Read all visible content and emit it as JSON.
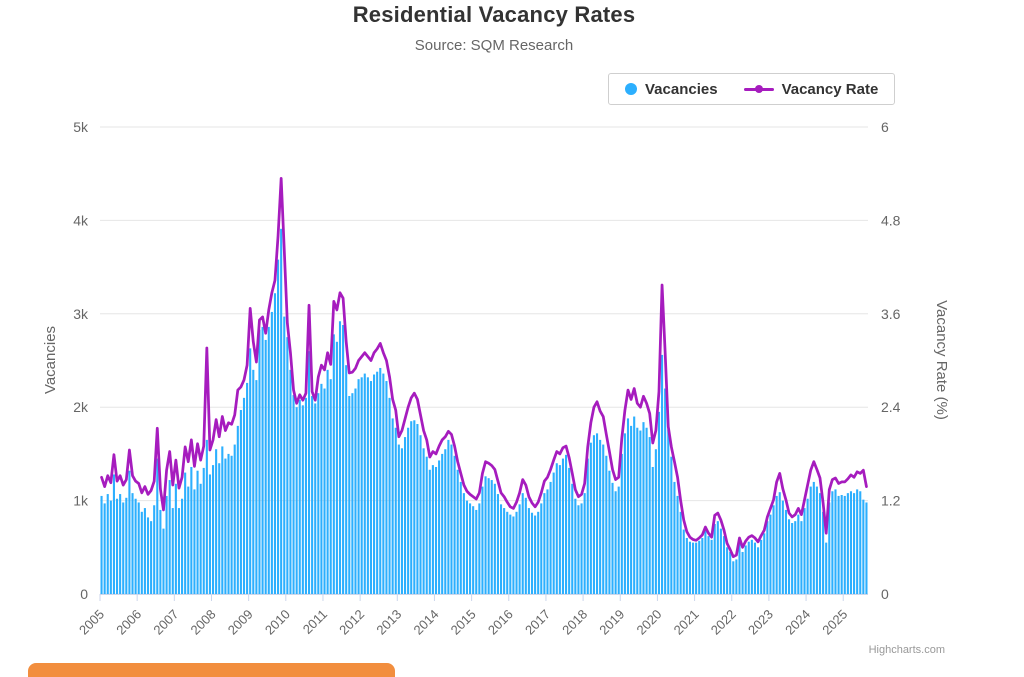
{
  "header": {
    "title": "Residential Vacancy Rates",
    "subtitle": "Source: SQM Research"
  },
  "legend": {
    "items": [
      {
        "label": "Vacancies",
        "marker": "circle-icon",
        "color": "#2CAFFE"
      },
      {
        "label": "Vacancy Rate",
        "marker": "line-dot-icon",
        "color": "#A61CBE"
      }
    ]
  },
  "credit": "Highcharts.com",
  "colors": {
    "bar_series": "#2CAFFE",
    "line_series": "#A61CBE",
    "grid": "#E6E6E6",
    "axis_line": "#CCD6EB",
    "title_text": "#333333",
    "muted_text": "#666666",
    "credit_text": "#999999",
    "orange_accent": "#F28E3E"
  },
  "chart_data": {
    "type": "combo-column-line-dual-axis",
    "interval": "monthly",
    "x_start": "2005-01",
    "x_end": "2025-08",
    "x_tick_labels": [
      "2005",
      "2006",
      "2007",
      "2008",
      "2009",
      "2010",
      "2011",
      "2012",
      "2013",
      "2014",
      "2015",
      "2016",
      "2017",
      "2018",
      "2019",
      "2020",
      "2021",
      "2022",
      "2023",
      "2024",
      "2025"
    ],
    "y_left": {
      "title": "Vacancies",
      "min": 0,
      "max": 5000,
      "ticks": [
        "0",
        "1k",
        "2k",
        "3k",
        "4k",
        "5k"
      ]
    },
    "y_right": {
      "title": "Vacancy Rate (%)",
      "min": 0,
      "max": 6,
      "ticks": [
        "0",
        "1.2",
        "2.4",
        "3.6",
        "4.8",
        "6"
      ]
    },
    "grid": true,
    "legend_position": "top-right",
    "series": [
      {
        "name": "Vacancies",
        "type": "column",
        "axis": "left",
        "unit": "dwellings",
        "values": [
          1050,
          970,
          1070,
          1000,
          1280,
          1020,
          1070,
          980,
          1030,
          1320,
          1080,
          1020,
          980,
          880,
          920,
          820,
          780,
          950,
          1450,
          900,
          700,
          1050,
          1220,
          920,
          1180,
          920,
          1020,
          1300,
          1150,
          1360,
          1120,
          1320,
          1180,
          1350,
          1650,
          1280,
          1380,
          1550,
          1400,
          1580,
          1450,
          1500,
          1480,
          1600,
          1800,
          1970,
          2100,
          2260,
          2630,
          2400,
          2290,
          2830,
          2860,
          2720,
          2860,
          3020,
          3220,
          3580,
          3910,
          2970,
          2750,
          2400,
          2130,
          2000,
          2080,
          2020,
          2100,
          2600,
          2120,
          2040,
          2150,
          2250,
          2200,
          2400,
          2300,
          2780,
          2700,
          2920,
          2880,
          2450,
          2120,
          2150,
          2200,
          2300,
          2320,
          2360,
          2320,
          2280,
          2350,
          2380,
          2420,
          2360,
          2280,
          2100,
          1880,
          1780,
          1600,
          1560,
          1680,
          1780,
          1850,
          1860,
          1820,
          1700,
          1560,
          1470,
          1330,
          1380,
          1360,
          1430,
          1500,
          1550,
          1650,
          1600,
          1480,
          1330,
          1200,
          1080,
          1000,
          970,
          940,
          900,
          970,
          1150,
          1260,
          1240,
          1220,
          1180,
          1070,
          960,
          920,
          880,
          850,
          830,
          880,
          960,
          1080,
          1030,
          920,
          870,
          840,
          880,
          970,
          1080,
          1120,
          1200,
          1300,
          1400,
          1380,
          1450,
          1490,
          1350,
          1180,
          1020,
          950,
          970,
          1080,
          1450,
          1620,
          1700,
          1720,
          1650,
          1600,
          1480,
          1320,
          1190,
          1100,
          1150,
          1500,
          1720,
          1880,
          1800,
          1900,
          1780,
          1750,
          1840,
          1780,
          1680,
          1360,
          1550,
          1950,
          2560,
          2200,
          1760,
          1470,
          1200,
          1050,
          880,
          690,
          600,
          560,
          550,
          550,
          570,
          600,
          700,
          620,
          580,
          750,
          780,
          700,
          620,
          500,
          450,
          350,
          370,
          550,
          450,
          520,
          560,
          580,
          550,
          500,
          580,
          650,
          780,
          850,
          950,
          1050,
          1090,
          1000,
          900,
          800,
          760,
          780,
          850,
          780,
          920,
          1020,
          1150,
          1200,
          1150,
          1080,
          880,
          550,
          980,
          1100,
          1120,
          1050,
          1060,
          1050,
          1080,
          1100,
          1080,
          1120,
          1100,
          1010,
          980
        ]
      },
      {
        "name": "Vacancy Rate",
        "type": "line",
        "axis": "right",
        "unit": "%",
        "values": [
          1.5,
          1.38,
          1.52,
          1.43,
          1.79,
          1.45,
          1.52,
          1.4,
          1.47,
          1.85,
          1.52,
          1.45,
          1.42,
          1.3,
          1.38,
          1.28,
          1.33,
          1.45,
          2.13,
          1.35,
          1.08,
          1.59,
          1.83,
          1.4,
          1.72,
          1.36,
          1.5,
          1.89,
          1.7,
          1.98,
          1.64,
          1.93,
          1.72,
          1.9,
          3.16,
          1.85,
          1.98,
          2.24,
          2.02,
          2.28,
          2.1,
          2.2,
          2.18,
          2.3,
          2.62,
          2.66,
          2.75,
          2.94,
          3.67,
          3.24,
          2.98,
          3.52,
          3.56,
          3.35,
          3.65,
          3.87,
          4.03,
          4.6,
          5.34,
          4.42,
          3.48,
          3.1,
          2.62,
          2.45,
          2.56,
          2.49,
          2.58,
          3.71,
          2.6,
          2.49,
          2.79,
          2.94,
          2.88,
          3.1,
          2.95,
          3.76,
          3.65,
          3.87,
          3.8,
          3.24,
          2.84,
          2.85,
          2.9,
          3.0,
          3.05,
          3.1,
          3.05,
          3.0,
          3.1,
          3.15,
          3.22,
          3.1,
          3.0,
          2.79,
          2.5,
          2.36,
          2.02,
          2.1,
          2.25,
          2.4,
          2.52,
          2.58,
          2.5,
          2.3,
          2.1,
          1.98,
          1.76,
          1.83,
          1.8,
          1.9,
          1.98,
          2.02,
          2.09,
          2.05,
          1.9,
          1.7,
          1.55,
          1.4,
          1.32,
          1.28,
          1.25,
          1.22,
          1.3,
          1.55,
          1.7,
          1.68,
          1.65,
          1.6,
          1.45,
          1.3,
          1.25,
          1.18,
          1.12,
          1.1,
          1.18,
          1.3,
          1.47,
          1.4,
          1.25,
          1.17,
          1.12,
          1.18,
          1.3,
          1.45,
          1.5,
          1.6,
          1.72,
          1.83,
          1.8,
          1.88,
          1.9,
          1.75,
          1.55,
          1.34,
          1.25,
          1.28,
          1.42,
          1.89,
          2.2,
          2.4,
          2.47,
          2.35,
          2.28,
          2.05,
          1.83,
          1.6,
          1.47,
          1.5,
          2.0,
          2.36,
          2.62,
          2.5,
          2.64,
          2.45,
          2.4,
          2.54,
          2.45,
          2.32,
          1.94,
          2.1,
          2.6,
          3.97,
          3.1,
          2.15,
          1.89,
          1.7,
          1.5,
          1.2,
          0.95,
          0.8,
          0.73,
          0.7,
          0.69,
          0.72,
          0.76,
          0.86,
          0.78,
          0.73,
          1.01,
          1.04,
          0.95,
          0.82,
          0.65,
          0.57,
          0.48,
          0.5,
          0.72,
          0.6,
          0.68,
          0.73,
          0.75,
          0.72,
          0.67,
          0.75,
          0.82,
          0.99,
          1.1,
          1.21,
          1.44,
          1.55,
          1.35,
          1.21,
          1.04,
          0.99,
          1.02,
          1.1,
          1.02,
          1.21,
          1.4,
          1.59,
          1.7,
          1.6,
          1.49,
          1.17,
          0.78,
          1.34,
          1.47,
          1.49,
          1.42,
          1.44,
          1.44,
          1.48,
          1.53,
          1.5,
          1.57,
          1.55,
          1.59,
          1.38
        ]
      }
    ]
  }
}
